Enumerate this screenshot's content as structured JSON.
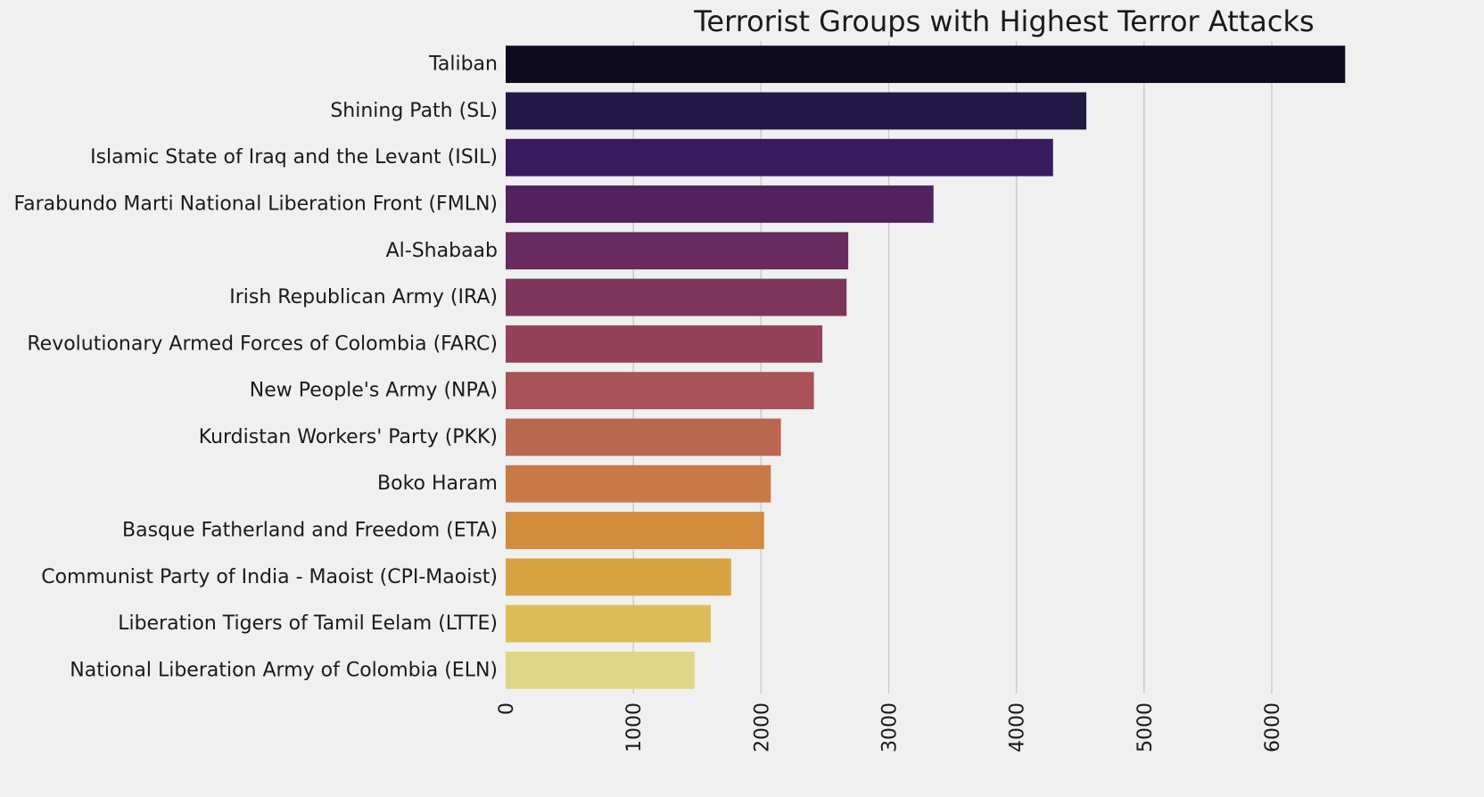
{
  "chart_data": {
    "type": "bar",
    "orientation": "horizontal",
    "title": "Terrorist Groups with Highest Terror Attacks",
    "xlabel": "",
    "ylabel": "",
    "xlim": [
      0,
      6600
    ],
    "xticks": [
      0,
      1000,
      2000,
      3000,
      4000,
      5000,
      6000
    ],
    "xtick_labels": [
      "0",
      "1000",
      "2000",
      "3000",
      "4000",
      "5000",
      "6000"
    ],
    "grid": "vertical",
    "categories": [
      "Taliban",
      "Shining Path (SL)",
      "Islamic State of Iraq and the Levant (ISIL)",
      "Farabundo Marti National Liberation Front (FMLN)",
      "Al-Shabaab",
      "Irish Republican Army (IRA)",
      "Revolutionary Armed Forces of Colombia (FARC)",
      "New People's Army (NPA)",
      "Kurdistan Workers' Party (PKK)",
      "Boko Haram",
      "Basque Fatherland and Freedom (ETA)",
      "Communist Party of India - Maoist (CPI-Maoist)",
      "Liberation Tigers of Tamil Eelam (LTTE)",
      "National Liberation Army of Colombia (ELN)"
    ],
    "values": [
      6575,
      4548,
      4287,
      3351,
      2683,
      2670,
      2480,
      2414,
      2156,
      2077,
      2024,
      1766,
      1606,
      1479
    ],
    "colors": [
      "#0e0b21",
      "#221845",
      "#3a1a5e",
      "#52225f",
      "#672b5d",
      "#7c365c",
      "#934259",
      "#a95257",
      "#bb6650",
      "#c97946",
      "#d28c3d",
      "#d8a343",
      "#dcbc57",
      "#dfd785"
    ],
    "background": "#f0f0f0"
  }
}
